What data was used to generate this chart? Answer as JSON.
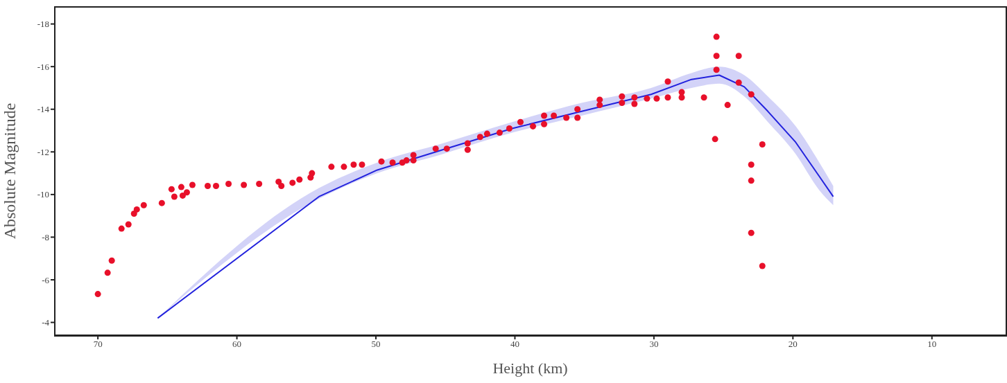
{
  "chart_data": {
    "type": "scatter",
    "xlabel": "Height (km)",
    "ylabel": "Absolute Magnitude",
    "xlim": [
      73.1,
      4.7
    ],
    "ylim": [
      -3.4,
      -18.8
    ],
    "xticks": [
      70,
      60,
      50,
      40,
      30,
      20,
      10
    ],
    "yticks": [
      -18,
      -16,
      -14,
      -12,
      -10,
      -8,
      -6,
      -4
    ],
    "grid": false,
    "legend": false,
    "series": [
      {
        "color": "#e8102a",
        "marker": "circle",
        "x": [
          70,
          69.3,
          69.0,
          68.3,
          67.8,
          67.4,
          67.2,
          66.7,
          65.4,
          64.7,
          64.5,
          64.0,
          63.9,
          63.6,
          63.2,
          62.1,
          61.5,
          60.6,
          59.5,
          58.4,
          57.0,
          56.8,
          56.0,
          55.5,
          54.7,
          54.6,
          53.2,
          52.3,
          51.6,
          51.0,
          49.6,
          48.8,
          48.1,
          47.8,
          47.3,
          47.3,
          45.7,
          44.9,
          43.4,
          43.4,
          42.5,
          42.0,
          41.1,
          40.4,
          39.6,
          38.7,
          37.9,
          37.9,
          37.2,
          36.3,
          35.5,
          35.5,
          33.9,
          33.9,
          32.3,
          32.3,
          31.4,
          31.4,
          30.5,
          29.8,
          29.0,
          29.0,
          28.0,
          28.0,
          26.4,
          25.5,
          25.5,
          25.5,
          23.9,
          23.9,
          23.0,
          24.7,
          25.6,
          22.2,
          23.0,
          23.0,
          23.0,
          22.2
        ],
        "values": [
          -5.33,
          -6.33,
          -6.9,
          -8.4,
          -8.6,
          -9.1,
          -9.3,
          -9.5,
          -9.6,
          -10.25,
          -9.9,
          -10.35,
          -9.95,
          -10.1,
          -10.45,
          -10.4,
          -10.4,
          -10.5,
          -10.45,
          -10.5,
          -10.6,
          -10.4,
          -10.55,
          -10.7,
          -10.8,
          -11.0,
          -11.3,
          -11.3,
          -11.4,
          -11.4,
          -11.55,
          -11.5,
          -11.5,
          -11.6,
          -11.85,
          -11.6,
          -12.15,
          -12.15,
          -12.4,
          -12.1,
          -12.7,
          -12.85,
          -12.9,
          -13.1,
          -13.4,
          -13.2,
          -13.7,
          -13.3,
          -13.7,
          -13.6,
          -14.0,
          -13.6,
          -14.2,
          -14.45,
          -14.6,
          -14.3,
          -14.55,
          -14.25,
          -14.5,
          -14.5,
          -15.3,
          -14.55,
          -14.8,
          -14.55,
          -14.55,
          -17.4,
          -16.5,
          -15.85,
          -16.5,
          -15.25,
          -14.7,
          -14.2,
          -12.6,
          -12.35,
          -11.4,
          -10.65,
          -8.2,
          -6.65
        ]
      },
      {
        "type": "line",
        "color": "#2222dd",
        "marker": "none",
        "x": [
          65.7,
          54.1,
          49.9,
          45.2,
          40.2,
          35.2,
          30.2,
          27.3,
          25.3,
          23.5,
          21.8,
          19.8,
          18.1,
          17.1
        ],
        "values": [
          -4.2,
          -9.9,
          -11.15,
          -12.1,
          -13.1,
          -13.9,
          -14.7,
          -15.4,
          -15.6,
          -15.05,
          -13.9,
          -12.45,
          -10.85,
          -9.9
        ],
        "lower": [
          -4.2,
          -9.8,
          -11.0,
          -11.9,
          -12.9,
          -13.7,
          -14.5,
          -15.0,
          -15.2,
          -14.6,
          -13.4,
          -11.9,
          -10.2,
          -9.5
        ],
        "upper": [
          -4.2,
          -10.3,
          -11.5,
          -12.4,
          -13.4,
          -14.3,
          -15.0,
          -15.7,
          -16.0,
          -15.6,
          -14.6,
          -13.2,
          -11.5,
          -10.4
        ]
      }
    ]
  }
}
